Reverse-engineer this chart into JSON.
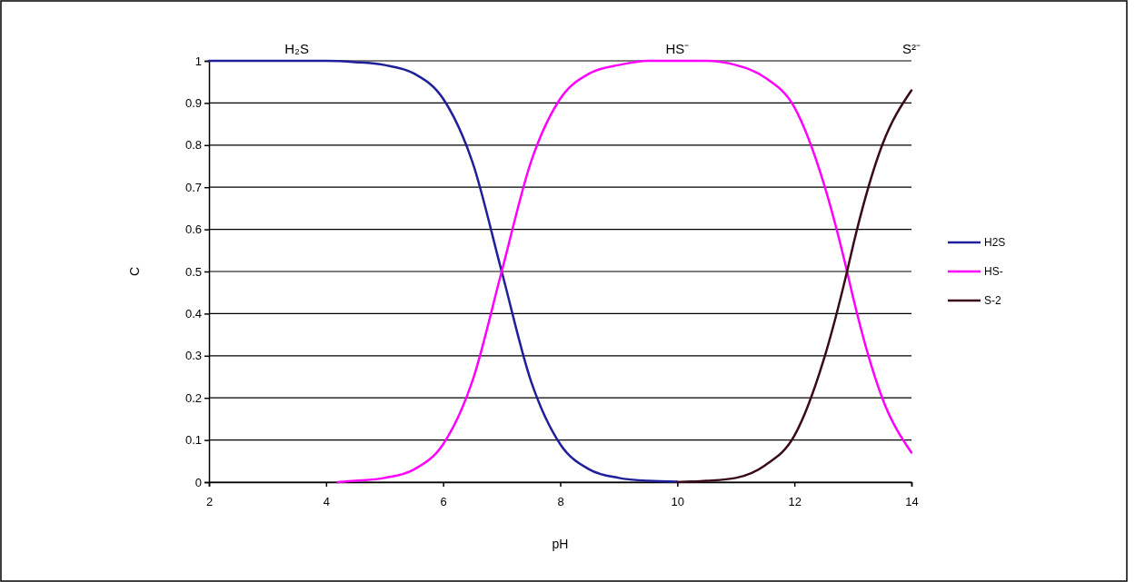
{
  "chart_data": {
    "type": "line",
    "xlabel": "pH",
    "ylabel": "C",
    "xlim": [
      2,
      14
    ],
    "xticks": [
      2,
      4,
      6,
      8,
      10,
      12,
      14
    ],
    "ylim": [
      0,
      1
    ],
    "yticks": [
      0,
      0.1,
      0.2,
      0.3,
      0.4,
      0.5,
      0.6,
      0.7,
      0.8,
      0.9,
      1
    ],
    "grid": "y",
    "legend": "right",
    "marker": "none",
    "line_style": "solid",
    "series": [
      {
        "name": "H2S",
        "color": "#1f1f9a",
        "x": [
          2,
          3,
          4,
          4.5,
          5,
          5.5,
          6,
          6.5,
          7,
          7.5,
          8,
          8.5,
          9,
          9.5,
          10
        ],
        "values": [
          1,
          1,
          1,
          0.997,
          0.99,
          0.97,
          0.91,
          0.76,
          0.5,
          0.24,
          0.09,
          0.03,
          0.01,
          0.003,
          0.001
        ]
      },
      {
        "name": "HS-",
        "color": "#ff00ff",
        "x": [
          4.2,
          4.5,
          5,
          5.5,
          6,
          6.5,
          7,
          7.5,
          8,
          8.5,
          9,
          9.5,
          10,
          10.5,
          11,
          11.5,
          12,
          12.5,
          12.9,
          13,
          13.5,
          14
        ],
        "values": [
          0,
          0.003,
          0.01,
          0.03,
          0.09,
          0.24,
          0.5,
          0.76,
          0.91,
          0.97,
          0.99,
          1,
          1,
          1,
          0.99,
          0.96,
          0.89,
          0.71,
          0.5,
          0.44,
          0.2,
          0.07
        ]
      },
      {
        "name": "S-2",
        "color": "#3a0a1a",
        "x": [
          10,
          10.5,
          11,
          11.5,
          12,
          12.5,
          12.9,
          13,
          13.5,
          14
        ],
        "values": [
          0,
          0.003,
          0.01,
          0.04,
          0.11,
          0.29,
          0.5,
          0.56,
          0.8,
          0.93
        ]
      }
    ],
    "annotations": [
      {
        "text": "H₂S",
        "x": 3.5,
        "y": 1
      },
      {
        "text": "HS⁻",
        "x": 10,
        "y": 1
      },
      "S²⁻"
    ]
  }
}
